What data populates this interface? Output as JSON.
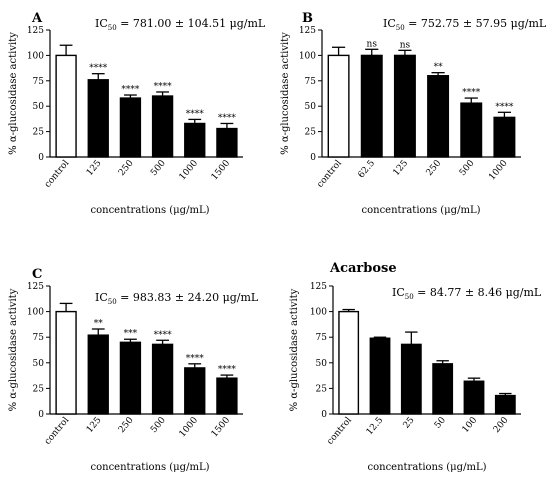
{
  "chart_data": [
    {
      "type": "bar",
      "panel_label": "A",
      "title": "",
      "ic50": {
        "prefix": "IC",
        "sub": "50",
        "text": " = 781.00 ± 104.51 μg/mL"
      },
      "categories": [
        "control",
        "125",
        "250",
        "500",
        "1000",
        "1500"
      ],
      "values": [
        100,
        76,
        58,
        60,
        33,
        28
      ],
      "errors": [
        10,
        6,
        3,
        4,
        4,
        5
      ],
      "annotations": [
        "",
        "****",
        "****",
        "****",
        "****",
        "****"
      ],
      "xlabel": "concentrations (μg/mL)",
      "ylabel": "% α-glucosidase activity",
      "ylim": [
        0,
        125
      ],
      "yticks": [
        "0",
        "25",
        "50",
        "75",
        "100",
        "125"
      ],
      "colors": {
        "control": "#ffffff",
        "treatment": "#000000"
      }
    },
    {
      "type": "bar",
      "panel_label": "B",
      "title": "",
      "ic50": {
        "prefix": "IC",
        "sub": "50",
        "text": " = 752.75 ±  57.95 μg/mL"
      },
      "categories": [
        "control",
        "62.5",
        "125",
        "250",
        "500",
        "1000"
      ],
      "values": [
        100,
        100,
        100,
        80,
        53,
        39
      ],
      "errors": [
        8,
        6,
        5,
        3,
        5,
        5
      ],
      "annotations": [
        "",
        "ns",
        "ns",
        "**",
        "****",
        "****"
      ],
      "xlabel": "concentrations (μg/mL)",
      "ylabel": "% α-glucosidase activity",
      "ylim": [
        0,
        125
      ],
      "yticks": [
        "0",
        "25",
        "50",
        "75",
        "100",
        "125"
      ],
      "colors": {
        "control": "#ffffff",
        "treatment": "#000000"
      }
    },
    {
      "type": "bar",
      "panel_label": "C",
      "title": "",
      "ic50": {
        "prefix": "IC",
        "sub": "50",
        "text": " =  983.83 ±  24.20 μg/mL"
      },
      "categories": [
        "control",
        "125",
        "250",
        "500",
        "1000",
        "1500"
      ],
      "values": [
        100,
        77,
        70,
        68,
        45,
        35
      ],
      "errors": [
        8,
        6,
        3,
        4,
        4,
        3
      ],
      "annotations": [
        "",
        "**",
        "***",
        "****",
        "****",
        "****"
      ],
      "xlabel": "concentrations (μg/mL)",
      "ylabel": "% α-glucosidase activity",
      "ylim": [
        0,
        125
      ],
      "yticks": [
        "0",
        "25",
        "50",
        "75",
        "100",
        "125"
      ],
      "colors": {
        "control": "#ffffff",
        "treatment": "#000000"
      }
    },
    {
      "type": "bar",
      "panel_label": "",
      "title": "Acarbose",
      "ic50": {
        "prefix": "IC",
        "sub": "50",
        "text": " = 84.77 ±  8.46 μg/mL"
      },
      "categories": [
        "control",
        "12.5",
        "25",
        "50",
        "100",
        "200"
      ],
      "values": [
        100,
        74,
        68,
        49,
        32,
        18
      ],
      "errors": [
        2,
        1,
        12,
        3,
        3,
        2
      ],
      "annotations": [
        "",
        "",
        "",
        "",
        "",
        ""
      ],
      "xlabel": "concentrations (μg/mL)",
      "ylabel": "% α-glucosidase activity",
      "ylim": [
        0,
        125
      ],
      "yticks": [
        "0",
        "25",
        "50",
        "75",
        "100",
        "125"
      ],
      "colors": {
        "control": "#ffffff",
        "treatment": "#000000"
      }
    }
  ]
}
